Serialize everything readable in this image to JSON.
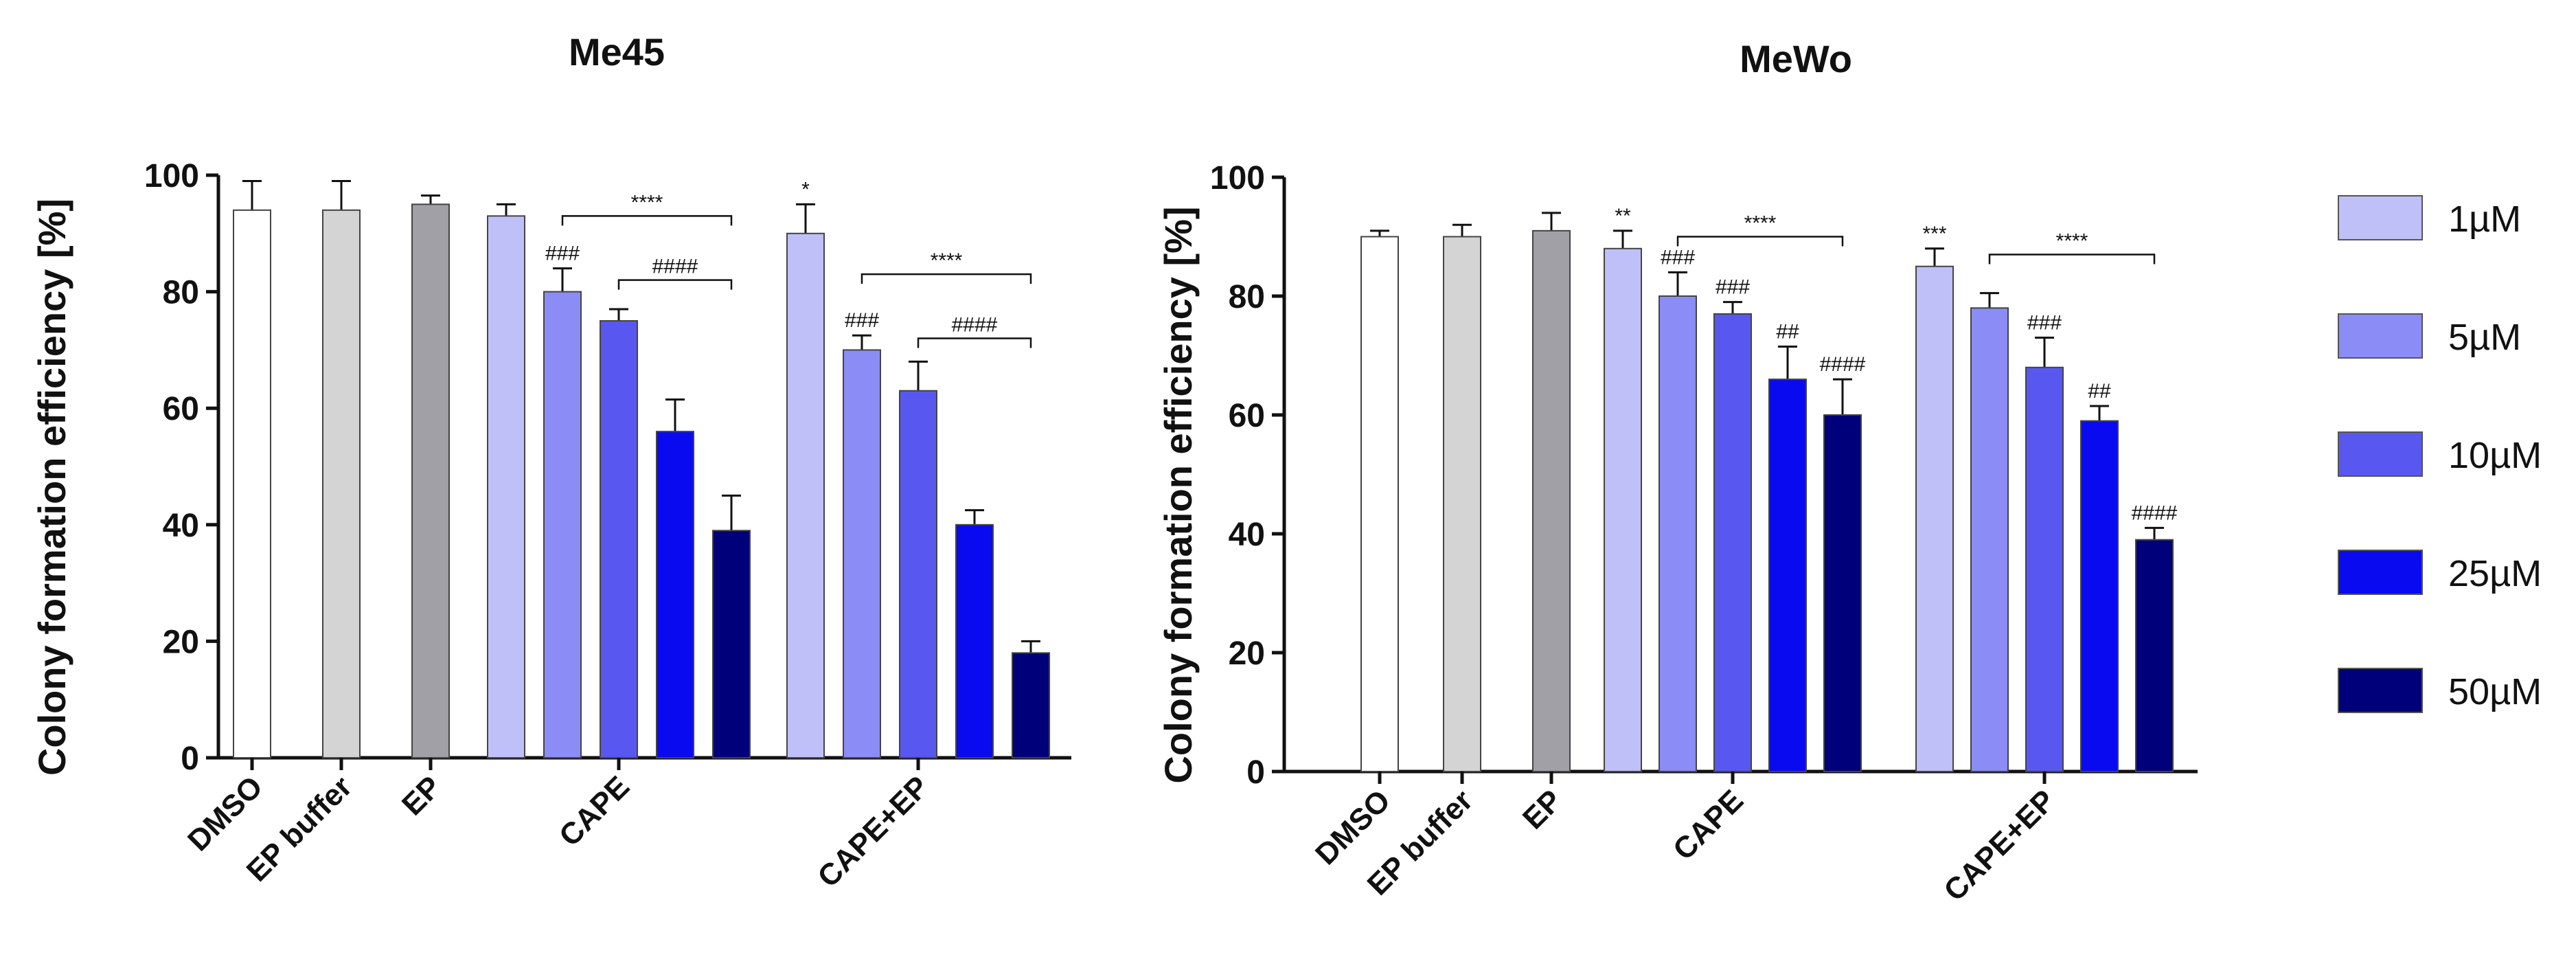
{
  "chart_data": [
    {
      "type": "bar",
      "title": "Me45",
      "ylabel": "Colony formation efficiency [%]",
      "xlabel": "",
      "ylim": [
        0,
        100
      ],
      "yticks": [
        0,
        20,
        40,
        60,
        80,
        100
      ],
      "groups": [
        {
          "label": "DMSO",
          "bars": [
            {
              "value": 94,
              "error": 5,
              "color": "#ffffff",
              "annotation": ""
            }
          ]
        },
        {
          "label": "EP buffer",
          "bars": [
            {
              "value": 94,
              "error": 5,
              "color": "#d4d4d4",
              "annotation": ""
            }
          ]
        },
        {
          "label": "EP",
          "bars": [
            {
              "value": 95,
              "error": 1.5,
              "color": "#a0a0a6",
              "annotation": ""
            }
          ]
        },
        {
          "label": "CAPE",
          "bars": [
            {
              "series": "1µM",
              "value": 93,
              "error": 2,
              "annotation": ""
            },
            {
              "series": "5µM",
              "value": 80,
              "error": 4,
              "annotation": "###"
            },
            {
              "series": "10µM",
              "value": 75,
              "error": 2,
              "annotation": ""
            },
            {
              "series": "25µM",
              "value": 56,
              "error": 5.5,
              "annotation": ""
            },
            {
              "series": "50µM",
              "value": 39,
              "error": 6,
              "annotation": ""
            }
          ]
        },
        {
          "label": "CAPE+EP",
          "bars": [
            {
              "series": "1µM",
              "value": 90,
              "error": 5,
              "annotation": "*"
            },
            {
              "series": "5µM",
              "value": 70,
              "error": 2.5,
              "annotation": "###"
            },
            {
              "series": "10µM",
              "value": 63,
              "error": 5,
              "annotation": ""
            },
            {
              "series": "25µM",
              "value": 40,
              "error": 2.5,
              "annotation": ""
            },
            {
              "series": "50µM",
              "value": 18,
              "error": 2,
              "annotation": ""
            }
          ]
        }
      ],
      "brackets": [
        {
          "group": 3,
          "from": 1,
          "to": 4,
          "level": 93,
          "label": "****"
        },
        {
          "group": 3,
          "from": 2,
          "to": 4,
          "level": 82,
          "label": "####"
        },
        {
          "group": 4,
          "from": 1,
          "to": 4,
          "level": 83,
          "label": "****"
        },
        {
          "group": 4,
          "from": 2,
          "to": 4,
          "level": 72,
          "label": "####"
        }
      ]
    },
    {
      "type": "bar",
      "title": "MeWo",
      "ylabel": "Colony formation efficiency [%]",
      "xlabel": "",
      "ylim": [
        0,
        100
      ],
      "yticks": [
        0,
        20,
        40,
        60,
        80,
        100
      ],
      "groups": [
        {
          "label": "DMSO",
          "bars": [
            {
              "value": 90,
              "error": 1,
              "color": "#ffffff",
              "annotation": ""
            }
          ]
        },
        {
          "label": "EP buffer",
          "bars": [
            {
              "value": 90,
              "error": 2,
              "color": "#d4d4d4",
              "annotation": ""
            }
          ]
        },
        {
          "label": "EP",
          "bars": [
            {
              "value": 91,
              "error": 3,
              "color": "#a0a0a6",
              "annotation": ""
            }
          ]
        },
        {
          "label": "CAPE",
          "bars": [
            {
              "series": "1µM",
              "value": 88,
              "error": 3,
              "annotation": "**"
            },
            {
              "series": "5µM",
              "value": 80,
              "error": 4,
              "annotation": "###"
            },
            {
              "series": "10µM",
              "value": 77,
              "error": 2,
              "annotation": "###"
            },
            {
              "series": "25µM",
              "value": 66,
              "error": 5.5,
              "annotation": "##"
            },
            {
              "series": "50µM",
              "value": 60,
              "error": 6,
              "annotation": "####"
            }
          ]
        },
        {
          "label": "CAPE+EP",
          "bars": [
            {
              "series": "1µM",
              "value": 85,
              "error": 3,
              "annotation": "***"
            },
            {
              "series": "5µM",
              "value": 78,
              "error": 2.5,
              "annotation": ""
            },
            {
              "series": "10µM",
              "value": 68,
              "error": 5,
              "annotation": "###"
            },
            {
              "series": "25µM",
              "value": 59,
              "error": 2.5,
              "annotation": "##"
            },
            {
              "series": "50µM",
              "value": 39,
              "error": 2,
              "annotation": "####"
            }
          ]
        }
      ],
      "brackets": [
        {
          "group": 3,
          "from": 1,
          "to": 4,
          "level": 90,
          "label": "****"
        },
        {
          "group": 4,
          "from": 1,
          "to": 4,
          "level": 87,
          "label": "****"
        }
      ]
    }
  ],
  "legend": {
    "placement": "right",
    "items": [
      {
        "label": "1µM",
        "color": "#c0c0f8"
      },
      {
        "label": "5µM",
        "color": "#8c8cf6"
      },
      {
        "label": "10µM",
        "color": "#5858f0"
      },
      {
        "label": "25µM",
        "color": "#0a0af0"
      },
      {
        "label": "50µM",
        "color": "#00007a"
      }
    ]
  }
}
